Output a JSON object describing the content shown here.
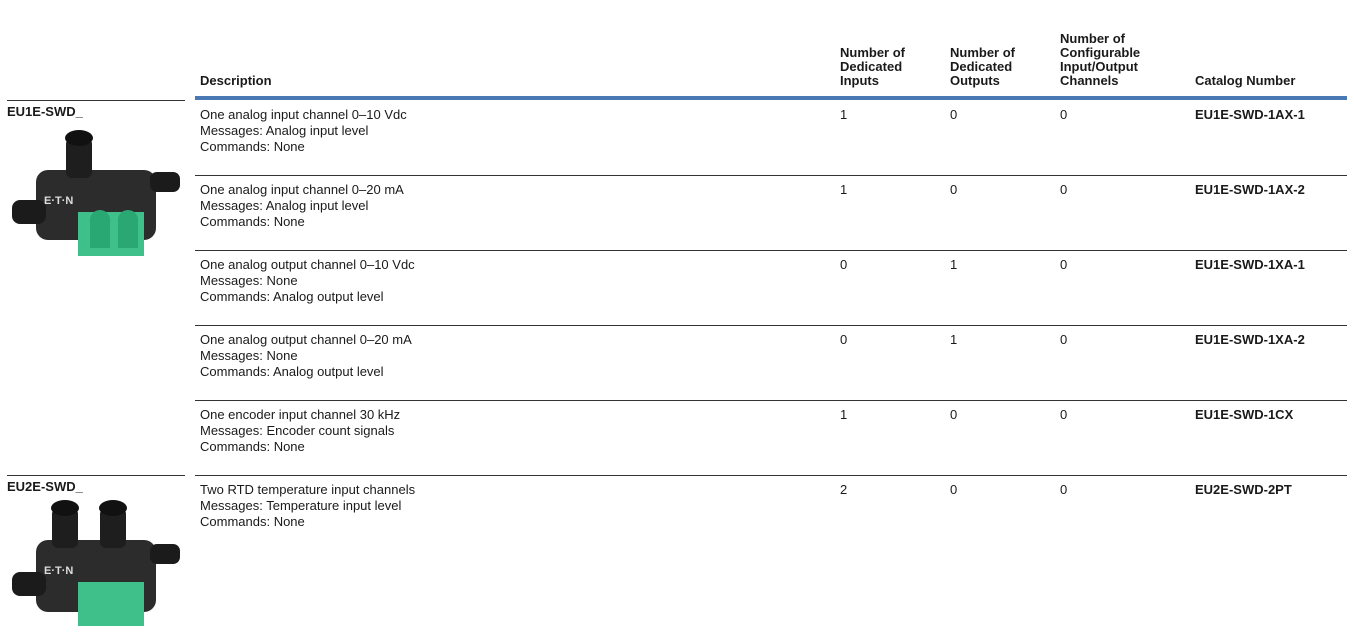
{
  "table": {
    "headers": [
      [
        "Description"
      ],
      [
        "Number of",
        "Dedicated",
        "Inputs"
      ],
      [
        "Number of",
        "Dedicated",
        "Outputs"
      ],
      [
        "Number of",
        "Configurable",
        "Input/Output",
        "Channels"
      ],
      [
        "Catalog Number"
      ]
    ],
    "groups": [
      {
        "label": "EU1E-SWD_",
        "rows": [
          {
            "description": [
              "One analog input channel 0–10 Vdc",
              "Messages: Analog input level",
              "Commands: None"
            ],
            "inputs": 1,
            "outputs": 0,
            "configurable": 0,
            "catalog": "EU1E-SWD-1AX-1"
          },
          {
            "description": [
              "One analog input channel 0–20 mA",
              "Messages: Analog input level",
              "Commands: None"
            ],
            "inputs": 1,
            "outputs": 0,
            "configurable": 0,
            "catalog": "EU1E-SWD-1AX-2"
          },
          {
            "description": [
              "One analog output channel 0–10 Vdc",
              "Messages: None",
              "Commands: Analog output level"
            ],
            "inputs": 0,
            "outputs": 1,
            "configurable": 0,
            "catalog": "EU1E-SWD-1XA-1"
          },
          {
            "description": [
              "One analog output channel 0–20 mA",
              "Messages: None",
              "Commands: Analog output level"
            ],
            "inputs": 0,
            "outputs": 1,
            "configurable": 0,
            "catalog": "EU1E-SWD-1XA-2"
          },
          {
            "description": [
              "One encoder input channel 30 kHz",
              "Messages: Encoder count signals",
              "Commands: None"
            ],
            "inputs": 1,
            "outputs": 0,
            "configurable": 0,
            "catalog": "EU1E-SWD-1CX"
          }
        ]
      },
      {
        "label": "EU2E-SWD_",
        "rows": [
          {
            "description": [
              "Two RTD temperature input channels",
              "Messages: Temperature input level",
              "Commands: None"
            ],
            "inputs": 2,
            "outputs": 0,
            "configurable": 0,
            "catalog": "EU2E-SWD-2PT"
          }
        ]
      }
    ]
  }
}
